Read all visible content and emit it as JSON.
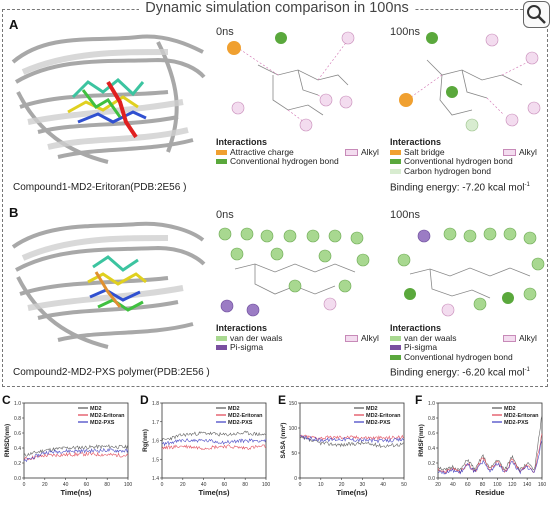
{
  "title": "Dynamic simulation comparison in 100ns",
  "panel_a": {
    "letter": "A",
    "time_left": "0ns",
    "time_right": "100ns",
    "caption": "Compound1-MD2-Eritoran(PDB:2E56 )",
    "legend_left": {
      "heading": "Interactions",
      "items": [
        {
          "label": "Attractive charge",
          "color": "#f0a030"
        },
        {
          "label": "Conventional hydrogen bond",
          "color": "#5aa83c"
        }
      ],
      "alkyl": "Alkyl"
    },
    "legend_right": {
      "heading": "Interactions",
      "items": [
        {
          "label": "Salt bridge",
          "color": "#f0a030"
        },
        {
          "label": "Conventional hydrogen bond",
          "color": "#5aa83c"
        },
        {
          "label": "Carbon hydrogen bond",
          "color": "#d8ecd0"
        }
      ],
      "alkyl": "Alkyl"
    },
    "energy_prefix": "Binding energy: -7.20 kcal mol",
    "energy_sup": "-1"
  },
  "panel_b": {
    "letter": "B",
    "time_left": "0ns",
    "time_right": "100ns",
    "caption": "Compound2-MD2-PXS polymer(PDB:2E56 )",
    "legend_left": {
      "heading": "Interactions",
      "items": [
        {
          "label": "van der waals",
          "color": "#a8d890"
        },
        {
          "label": "Pi-sigma",
          "color": "#7a4fa0"
        }
      ],
      "alkyl": "Alkyl"
    },
    "legend_right": {
      "heading": "Interactions",
      "items": [
        {
          "label": "van der waals",
          "color": "#a8d890"
        },
        {
          "label": "Pi-sigma",
          "color": "#7a4fa0"
        },
        {
          "label": "Conventional hydrogen bond",
          "color": "#5aa83c"
        }
      ],
      "alkyl": "Alkyl"
    },
    "energy_prefix": "Binding energy: -6.20 kcal mol",
    "energy_sup": "-1"
  },
  "colors": {
    "md2": "#555555",
    "eritoran": "#e04050",
    "pxs": "#3a3ac0"
  },
  "chart_data": [
    {
      "type": "line",
      "letter": "C",
      "ylabel": "RMSD(nm)",
      "xlabel": "Time(ns)",
      "xlim": [
        0,
        100
      ],
      "ylim": [
        0,
        1.0
      ],
      "xticks": [
        "0",
        "20",
        "40",
        "60",
        "80",
        "100"
      ],
      "yticks": [
        "0.0",
        "0.2",
        "0.4",
        "0.6",
        "0.8",
        "1.0"
      ],
      "series": [
        {
          "name": "MD2",
          "values": [
            0.3,
            0.37,
            0.4,
            0.41,
            0.42,
            0.41
          ]
        },
        {
          "name": "MD2-Eritoran",
          "values": [
            0.25,
            0.3,
            0.31,
            0.32,
            0.31,
            0.3
          ]
        },
        {
          "name": "MD2-PXS",
          "values": [
            0.22,
            0.34,
            0.36,
            0.36,
            0.37,
            0.36
          ]
        }
      ]
    },
    {
      "type": "line",
      "letter": "D",
      "ylabel": "Rg(nm)",
      "xlabel": "Time(ns)",
      "xlim": [
        0,
        100
      ],
      "ylim": [
        1.4,
        1.8
      ],
      "xticks": [
        "0",
        "20",
        "40",
        "60",
        "80",
        "100"
      ],
      "yticks": [
        "1.4",
        "1.5",
        "1.6",
        "1.7",
        "1.8"
      ],
      "series": [
        {
          "name": "MD2",
          "values": [
            1.6,
            1.63,
            1.64,
            1.63,
            1.64,
            1.63
          ]
        },
        {
          "name": "MD2-Eritoran",
          "values": [
            1.56,
            1.57,
            1.56,
            1.57,
            1.56,
            1.57
          ]
        },
        {
          "name": "MD2-PXS",
          "values": [
            1.58,
            1.6,
            1.6,
            1.59,
            1.6,
            1.6
          ]
        }
      ]
    },
    {
      "type": "line",
      "letter": "E",
      "ylabel": "SASA (nm²)",
      "xlabel": "Time(ns)",
      "xlim": [
        0,
        50
      ],
      "ylim": [
        0,
        150
      ],
      "xticks": [
        "0",
        "10",
        "20",
        "30",
        "40",
        "50"
      ],
      "yticks": [
        "0",
        "50",
        "100",
        "150"
      ],
      "series": [
        {
          "name": "MD2",
          "values": [
            80,
            70,
            66,
            70,
            64,
            68
          ]
        },
        {
          "name": "MD2-Eritoran",
          "values": [
            84,
            80,
            82,
            81,
            80,
            82
          ]
        },
        {
          "name": "MD2-PXS",
          "values": [
            82,
            76,
            78,
            76,
            74,
            77
          ]
        }
      ]
    },
    {
      "type": "line",
      "letter": "F",
      "ylabel": "RMSF(nm)",
      "xlabel": "Residue",
      "xlim": [
        20,
        160
      ],
      "ylim": [
        0,
        1.0
      ],
      "xticks": [
        "20",
        "40",
        "60",
        "80",
        "100",
        "120",
        "140",
        "160"
      ],
      "yticks": [
        "0.0",
        "0.2",
        "0.4",
        "0.6",
        "0.8",
        "1.0"
      ],
      "series": [
        {
          "name": "MD2",
          "values": [
            0.15,
            0.1,
            0.15,
            0.1,
            0.25,
            0.1,
            0.3,
            0.12,
            0.25,
            0.1,
            0.3,
            0.1,
            0.2,
            0.1,
            0.85
          ]
        },
        {
          "name": "MD2-Eritoran",
          "values": [
            0.12,
            0.08,
            0.12,
            0.08,
            0.2,
            0.08,
            0.28,
            0.1,
            0.22,
            0.08,
            0.25,
            0.08,
            0.18,
            0.08,
            0.6
          ]
        },
        {
          "name": "MD2-PXS",
          "values": [
            0.1,
            0.07,
            0.1,
            0.07,
            0.18,
            0.07,
            0.22,
            0.09,
            0.2,
            0.07,
            0.22,
            0.07,
            0.15,
            0.07,
            0.5
          ]
        }
      ]
    }
  ]
}
